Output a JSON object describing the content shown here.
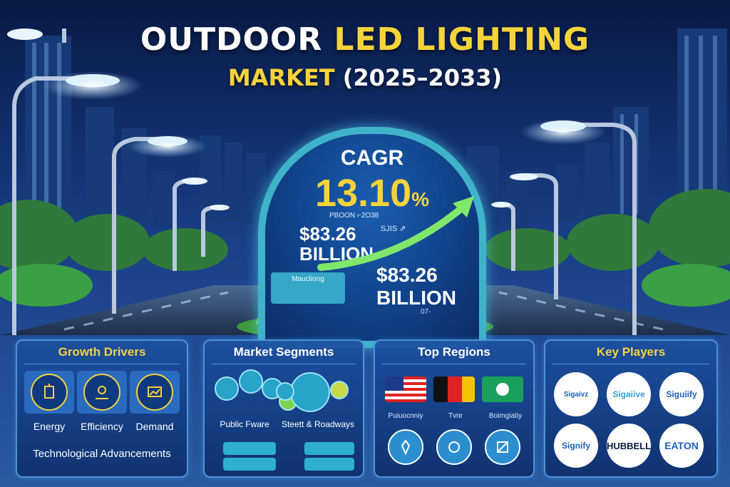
{
  "title": {
    "line1_prefix": "OUTDOOR ",
    "line1_highlight": "LED LIGHTING",
    "line2_market": "MARKET ",
    "line2_years": "(2025–2033)"
  },
  "center": {
    "cagr_label": "CAGR",
    "cagr_value": "13.10",
    "cagr_unit": "%",
    "cagr_sub": "PBOON  ⌐2O38",
    "value_left": "$83.26",
    "value_left_unit": "BILLION",
    "glyph": "SJIS ⇗",
    "value_right": "$83.26",
    "value_right_unit": "BILLION",
    "tag": "Maucliong",
    "note": "07-"
  },
  "panels": {
    "growth": {
      "title": "Growth Drivers",
      "items": [
        "Energy",
        "Efficiency",
        "Demand"
      ],
      "footer": "Technological Advancements"
    },
    "segments": {
      "title": "Market Segments",
      "items": [
        "Public Fware",
        "Steett & Roadways"
      ]
    },
    "regions": {
      "title": "Top Regions",
      "labels": [
        "Puiuocnniy",
        "Tvnr",
        "Boimgiatiy"
      ]
    },
    "players": {
      "title": "Key Players",
      "logos": [
        "Sigaivz",
        "Sigaiive",
        "Siguiify",
        "Signify",
        "HUBBELL",
        "EATON"
      ]
    }
  },
  "colors": {
    "gold": "#f5d33a",
    "teal": "#3fb3c9",
    "panel": "#1c50a0"
  }
}
